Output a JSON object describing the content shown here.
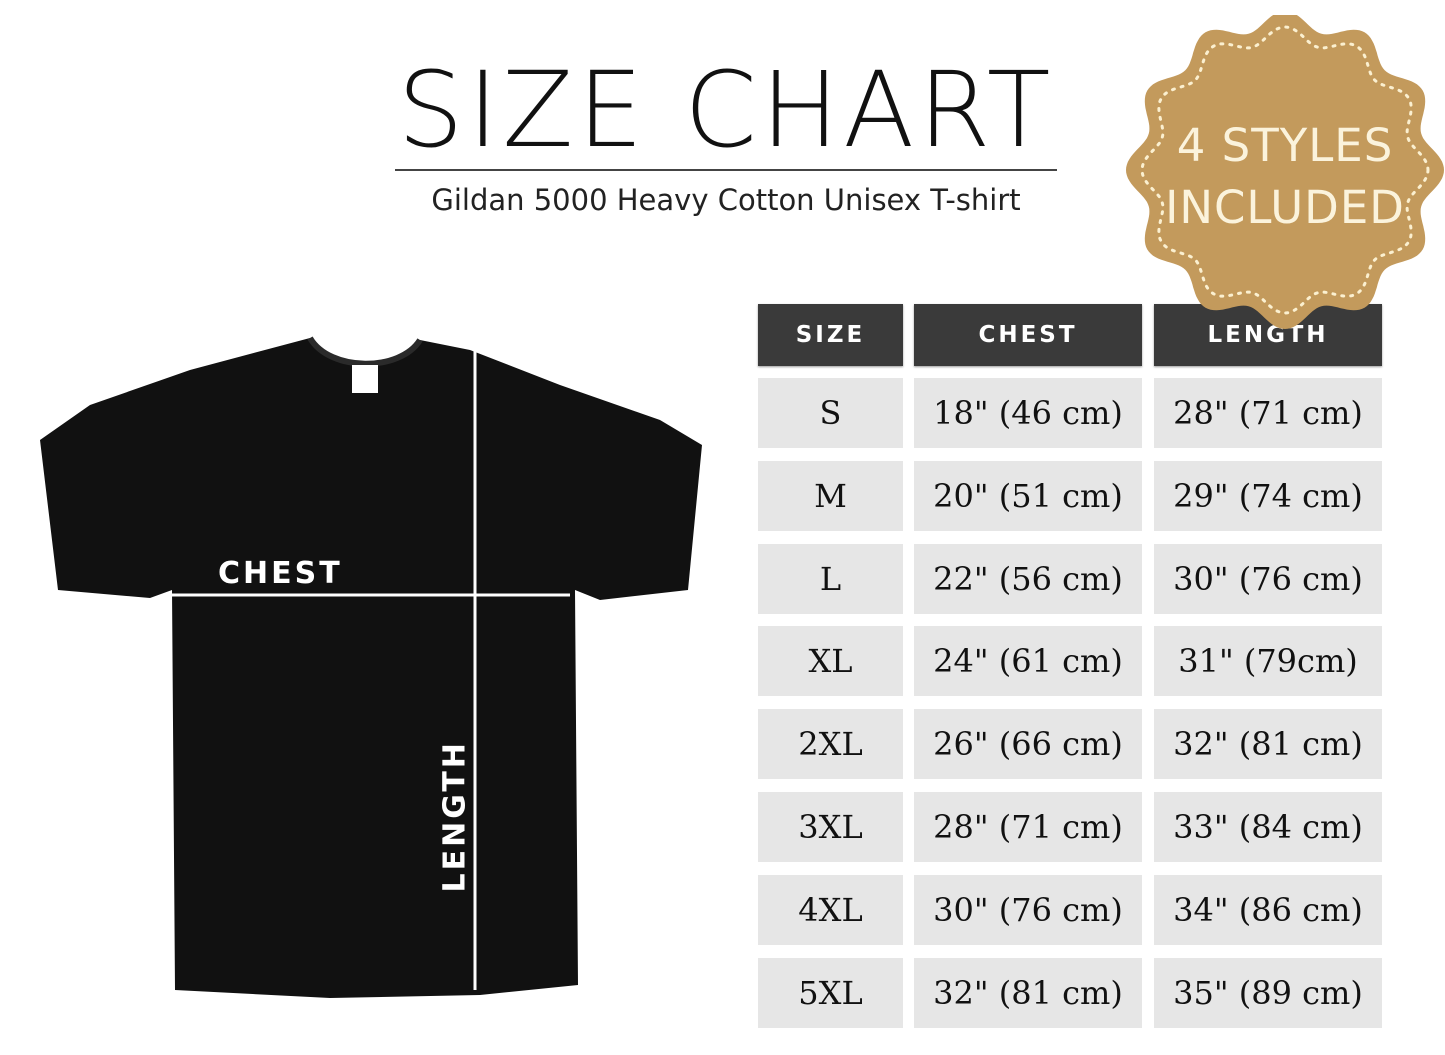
{
  "header": {
    "title": "SIZE CHART",
    "subtitle": "Gildan 5000 Heavy Cotton Unisex T-shirt"
  },
  "badge": {
    "line1": "4 STYLES",
    "line2": "INCLUDED",
    "color": "#c39a5c"
  },
  "shirt": {
    "chest_label": "CHEST",
    "length_label": "LENGTH",
    "color": "#111111"
  },
  "table": {
    "headers": [
      "SIZE",
      "CHEST",
      "LENGTH"
    ],
    "rows": [
      [
        "S",
        "18\" (46 cm)",
        "28\" (71 cm)"
      ],
      [
        "M",
        "20\" (51 cm)",
        "29\" (74 cm)"
      ],
      [
        "L",
        "22\" (56 cm)",
        "30\" (76 cm)"
      ],
      [
        "XL",
        "24\" (61 cm)",
        "31\" (79cm)"
      ],
      [
        "2XL",
        "26\" (66 cm)",
        "32\" (81 cm)"
      ],
      [
        "3XL",
        "28\" (71 cm)",
        "33\" (84 cm)"
      ],
      [
        "4XL",
        "30\" (76 cm)",
        "34\" (86 cm)"
      ],
      [
        "5XL",
        "32\" (81 cm)",
        "35\" (89 cm)"
      ]
    ]
  }
}
